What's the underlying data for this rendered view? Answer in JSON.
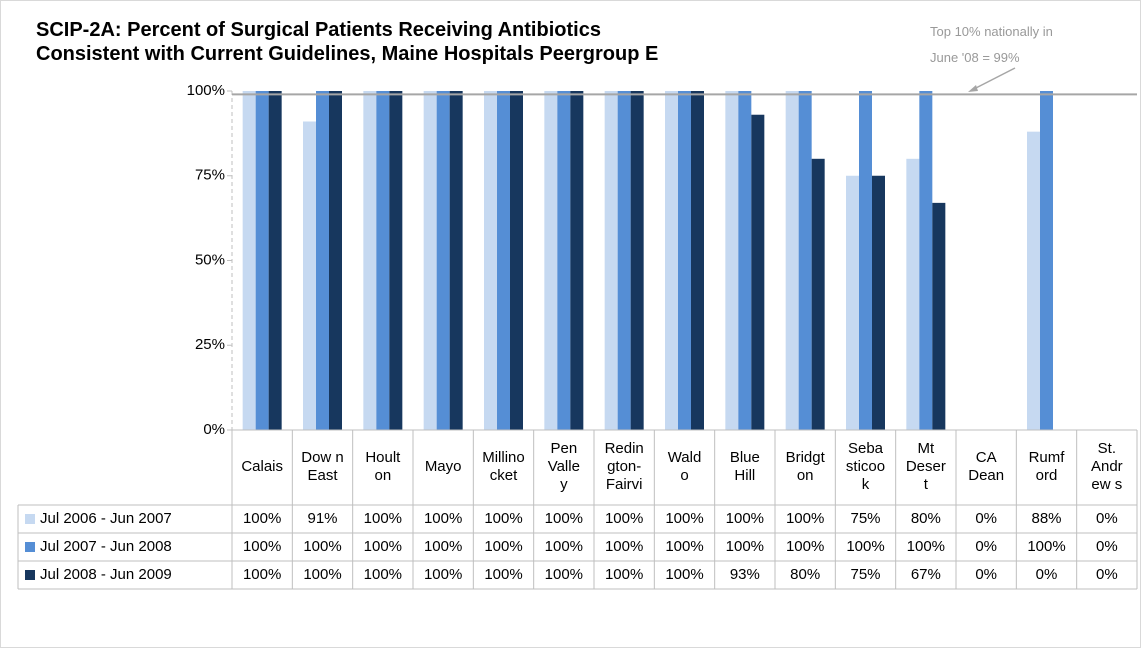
{
  "chart_data": {
    "type": "bar",
    "title": "SCIP-2A:  Percent of Surgical Patients Receiving Antibiotics\nConsistent  with Current Guidelines, Maine Hospitals Peergroup E",
    "annotation": "Top 10% nationally in\nJune '08 = 99%",
    "reference_line": 99,
    "categories": [
      "Calais",
      "Dow n\nEast",
      "Hoult\non",
      "Mayo",
      "Millino\ncket",
      "Pen\nValle\ny",
      "Redin\ngton-\nFairvi",
      "Wald\no",
      "Blue\nHill",
      "Bridgt\non",
      "Seba\nsticoo\nk",
      "Mt\nDeser\nt",
      "CA\nDean",
      "Rumf\nord",
      "St.\nAndr\new s"
    ],
    "series": [
      {
        "name": "Jul 2006 - Jun 2007",
        "color": "#c6d9f1",
        "values": [
          100,
          91,
          100,
          100,
          100,
          100,
          100,
          100,
          100,
          100,
          75,
          80,
          0,
          88,
          0
        ],
        "value_labels": [
          "100%",
          "91%",
          "100%",
          "100%",
          "100%",
          "100%",
          "100%",
          "100%",
          "100%",
          "100%",
          "75%",
          "80%",
          "0%",
          "88%",
          "0%"
        ]
      },
      {
        "name": "Jul 2007 - Jun 2008",
        "color": "#558ed5",
        "values": [
          100,
          100,
          100,
          100,
          100,
          100,
          100,
          100,
          100,
          100,
          100,
          100,
          0,
          100,
          0
        ],
        "value_labels": [
          "100%",
          "100%",
          "100%",
          "100%",
          "100%",
          "100%",
          "100%",
          "100%",
          "100%",
          "100%",
          "100%",
          "100%",
          "0%",
          "100%",
          "0%"
        ]
      },
      {
        "name": "Jul 2008 - Jun 2009",
        "color": "#17375e",
        "values": [
          100,
          100,
          100,
          100,
          100,
          100,
          100,
          100,
          93,
          80,
          75,
          67,
          0,
          0,
          0
        ],
        "value_labels": [
          "100%",
          "100%",
          "100%",
          "100%",
          "100%",
          "100%",
          "100%",
          "100%",
          "93%",
          "80%",
          "75%",
          "67%",
          "0%",
          "0%",
          "0%"
        ]
      }
    ],
    "ylim": [
      0,
      100
    ],
    "yticks": [
      {
        "value": 0,
        "label": "0%"
      },
      {
        "value": 25,
        "label": "25%"
      },
      {
        "value": 50,
        "label": "50%"
      },
      {
        "value": 75,
        "label": "75%"
      },
      {
        "value": 100,
        "label": "100%"
      }
    ]
  }
}
